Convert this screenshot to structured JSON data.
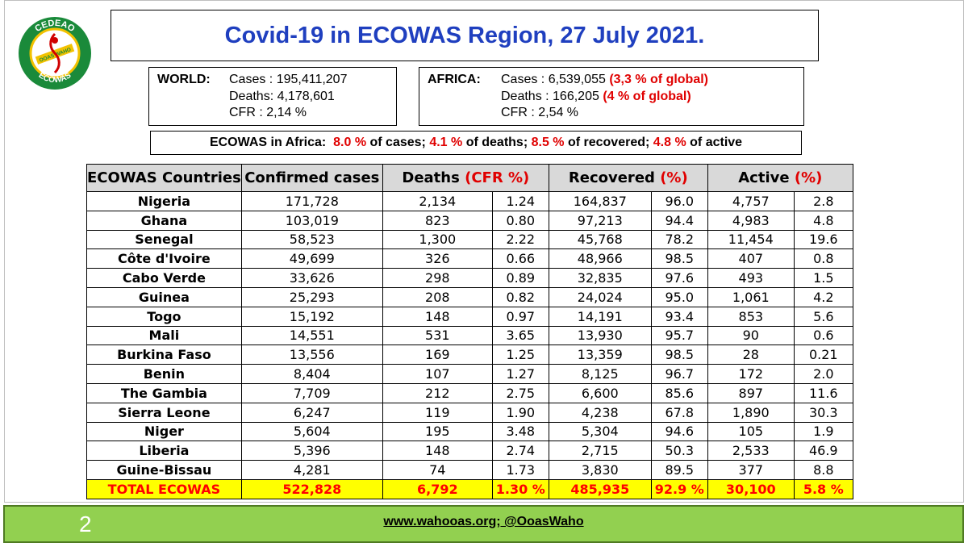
{
  "logo": {
    "top_text": "CEDEAO",
    "bottom_text": "ECOWAS",
    "banner_text": "OOAS WAHO"
  },
  "title": "Covid-19 in ECOWAS Region, 27 July 2021.",
  "world": {
    "label": "WORLD:",
    "cases": "Cases : 195,411,207",
    "deaths": "Deaths: 4,178,601",
    "cfr": "CFR : 2,14 %"
  },
  "africa": {
    "label": "AFRICA:",
    "cases": "Cases : 6,539,055",
    "cases_pct": "(3,3 % of global)",
    "deaths": "Deaths : 166,205",
    "deaths_pct": "(4 % of global)",
    "cfr": "CFR : 2,54 %"
  },
  "ecowas_summary": {
    "label": "ECOWAS in Africa:  ",
    "cases_pct": "8.0 %",
    "cases_text": " of cases; ",
    "deaths_pct": "4.1 %",
    "deaths_text": " of deaths; ",
    "recovered_pct": "8.5 %",
    "recovered_text": " of recovered; ",
    "active_pct": "4.8 %",
    "active_text": " of active"
  },
  "table": {
    "headers": {
      "country": "ECOWAS Countries",
      "confirmed": "Confirmed cases",
      "deaths": "Deaths",
      "deaths_paren": "(CFR %)",
      "recovered": "Recovered",
      "recovered_paren": "(%)",
      "active": "Active",
      "active_paren": "(%)"
    },
    "rows": [
      [
        "Nigeria",
        "171,728",
        "2,134",
        "1.24",
        "164,837",
        "96.0",
        "4,757",
        "2.8"
      ],
      [
        "Ghana",
        "103,019",
        "823",
        "0.80",
        "97,213",
        "94.4",
        "4,983",
        "4.8"
      ],
      [
        "Senegal",
        "58,523",
        "1,300",
        "2.22",
        "45,768",
        "78.2",
        "11,454",
        "19.6"
      ],
      [
        "Côte d'Ivoire",
        "49,699",
        "326",
        "0.66",
        "48,966",
        "98.5",
        "407",
        "0.8"
      ],
      [
        "Cabo Verde",
        "33,626",
        "298",
        "0.89",
        "32,835",
        "97.6",
        "493",
        "1.5"
      ],
      [
        "Guinea",
        "25,293",
        "208",
        "0.82",
        "24,024",
        "95.0",
        "1,061",
        "4.2"
      ],
      [
        "Togo",
        "15,192",
        "148",
        "0.97",
        "14,191",
        "93.4",
        "853",
        "5.6"
      ],
      [
        "Mali",
        "14,551",
        "531",
        "3.65",
        "13,930",
        "95.7",
        "90",
        "0.6"
      ],
      [
        "Burkina Faso",
        "13,556",
        "169",
        "1.25",
        "13,359",
        "98.5",
        "28",
        "0.21"
      ],
      [
        "Benin",
        "8,404",
        "107",
        "1.27",
        "8,125",
        "96.7",
        "172",
        "2.0"
      ],
      [
        "The Gambia",
        "7,709",
        "212",
        "2.75",
        "6,600",
        "85.6",
        "897",
        "11.6"
      ],
      [
        "Sierra Leone",
        "6,247",
        "119",
        "1.90",
        "4,238",
        "67.8",
        "1,890",
        "30.3"
      ],
      [
        "Niger",
        "5,604",
        "195",
        "3.48",
        "5,304",
        "94.6",
        "105",
        "1.9"
      ],
      [
        "Liberia",
        "5,396",
        "148",
        "2.74",
        "2,715",
        "50.3",
        "2,533",
        "46.9"
      ],
      [
        "Guine-Bissau",
        "4,281",
        "74",
        "1.73",
        "3,830",
        "89.5",
        "377",
        "8.8"
      ]
    ],
    "total": [
      "TOTAL ECOWAS",
      "522,828",
      "6,792",
      "1.30 %",
      "485,935",
      "92.9 %",
      "30,100",
      "5.8 %"
    ]
  },
  "footer": {
    "page_number": "2",
    "website": "www.wahooas.org; @OoasWaho"
  },
  "colors": {
    "title": "#1f3fbf",
    "highlight_red": "#e00000",
    "total_row": "#ffff00",
    "footer_bg": "#92d050",
    "logo_green": "#1a8a3a"
  }
}
